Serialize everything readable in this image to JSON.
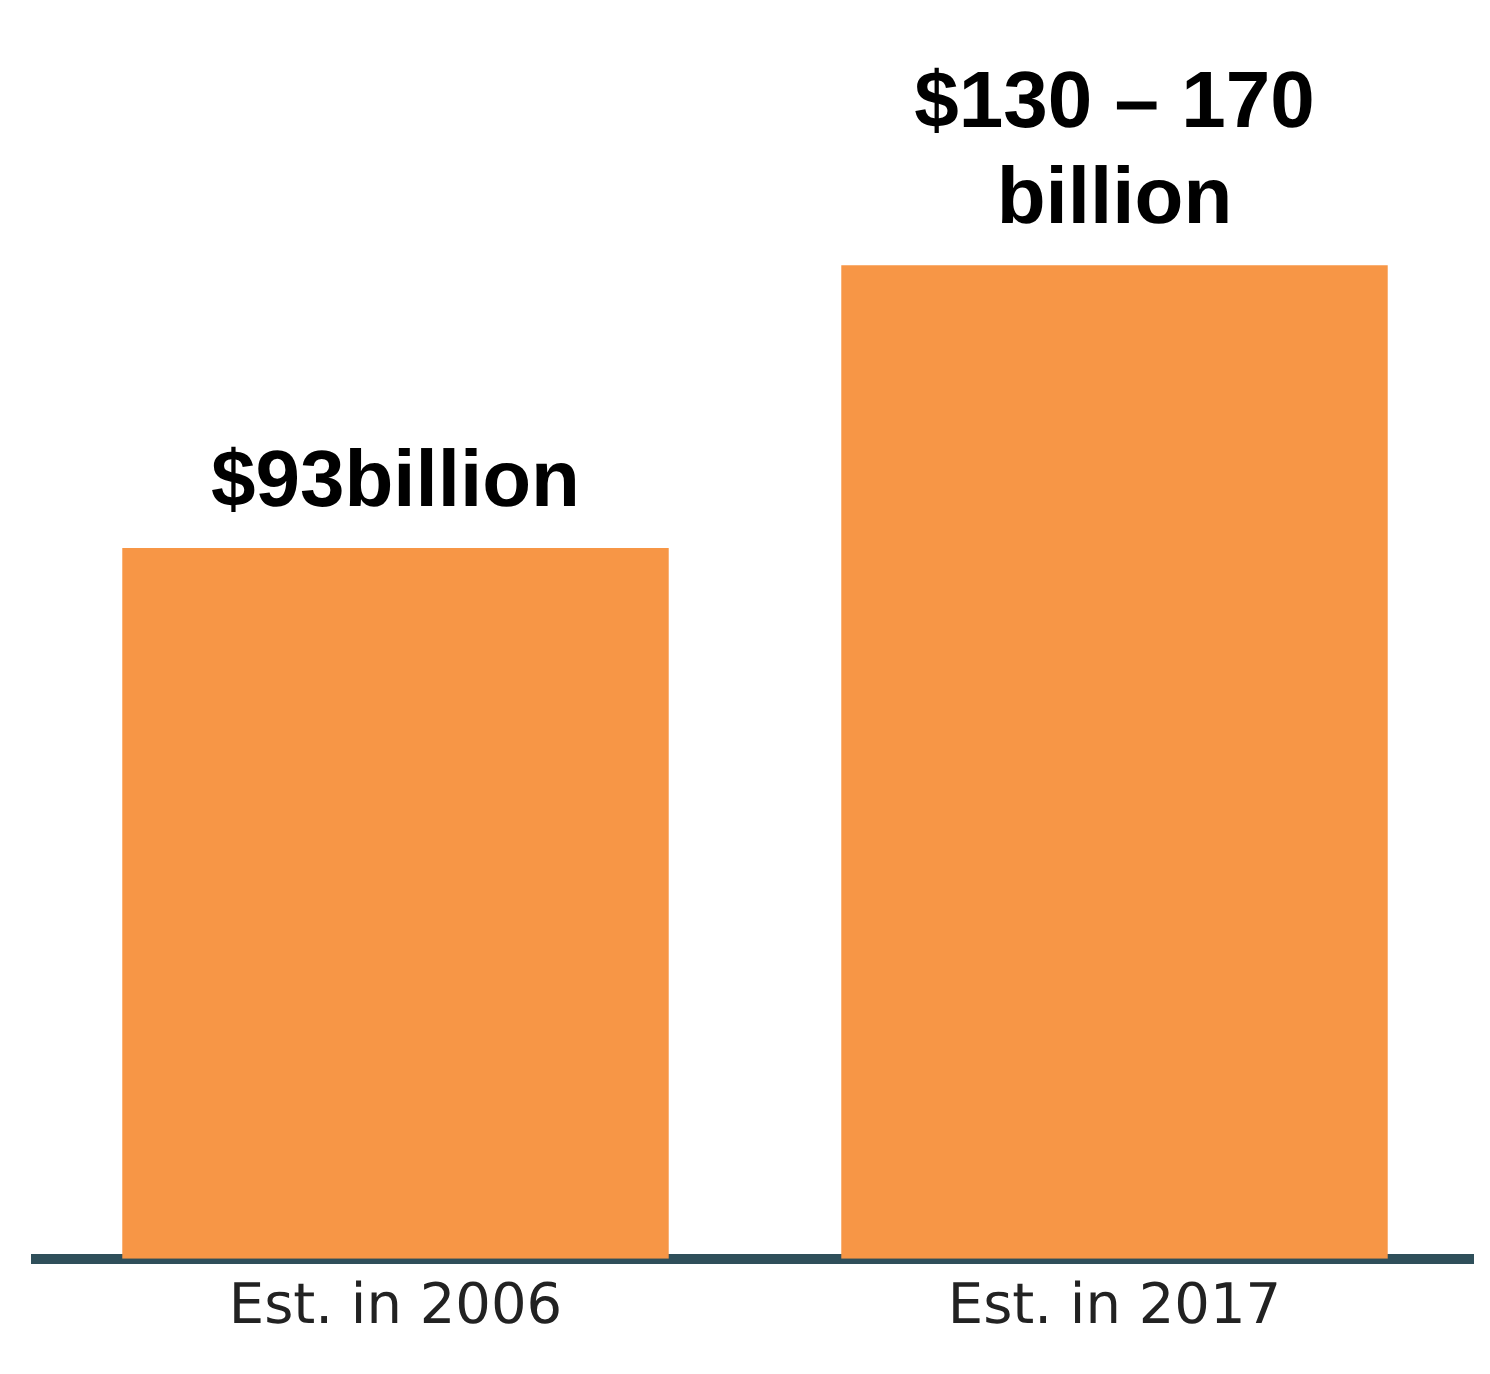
{
  "chart_data": {
    "type": "bar",
    "categories": [
      "Est. in 2006",
      "Est. in 2017"
    ],
    "values": [
      93,
      130
    ],
    "value_labels": [
      "$93billion",
      "$130 – 170\nbillion"
    ],
    "color": "#f79646",
    "tick_labels": "x",
    "grid": false,
    "legend": false
  }
}
